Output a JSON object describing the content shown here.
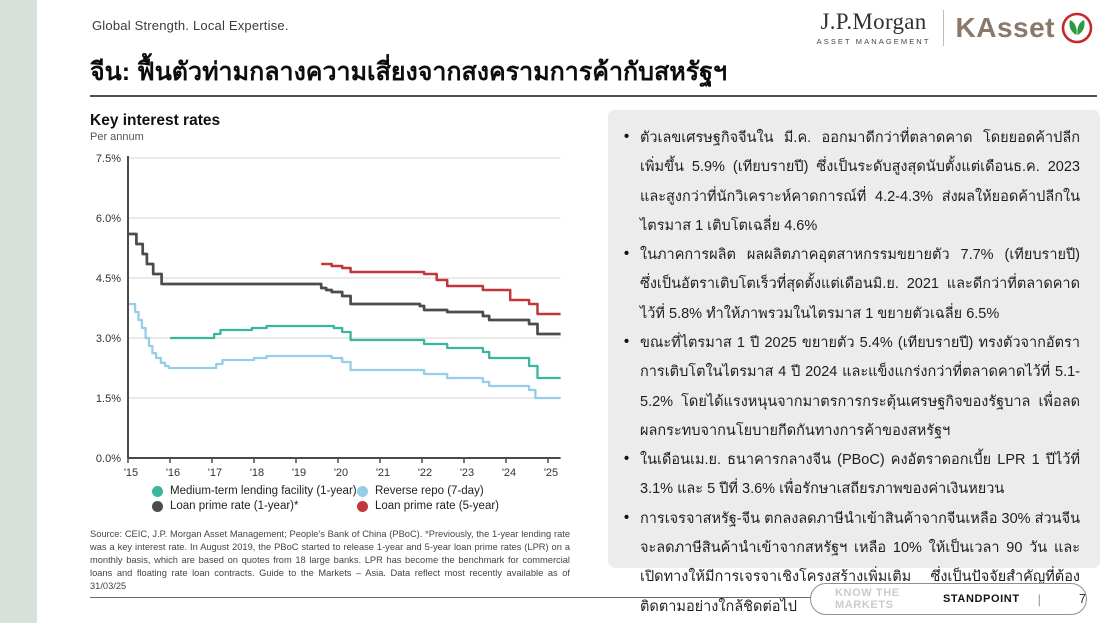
{
  "page": {
    "tagline": "Global Strength. Local Expertise.",
    "title": "จีน: ฟื้นตัวท่ามกลางความเสี่ยงจากสงครามการค้ากับสหรัฐฯ"
  },
  "logos": {
    "jpmorgan": {
      "name": "J.P.Morgan",
      "sub": "ASSET MANAGEMENT"
    },
    "kasset": {
      "name": "KAsset",
      "ring_color": "#c5282d",
      "leaf_color": "#2e9b44",
      "text_color": "#8a796b"
    }
  },
  "chart_data": {
    "type": "line",
    "title": "Key interest rates",
    "subtitle": "Per annum",
    "xlabel": "",
    "ylabel": "Per annum",
    "ylim": [
      0,
      7.5
    ],
    "xlim": [
      2015,
      2025.3
    ],
    "grid": true,
    "legend_position": "bottom",
    "yticks": [
      {
        "value": 7.5,
        "label": "7.5%"
      },
      {
        "value": 6.0,
        "label": "6.0%"
      },
      {
        "value": 4.5,
        "label": "4.5%"
      },
      {
        "value": 3.0,
        "label": "3.0%"
      },
      {
        "value": 1.5,
        "label": "1.5%"
      },
      {
        "value": 0.0,
        "label": "0.0%"
      }
    ],
    "xticks": [
      {
        "value": 2015,
        "label": "'15"
      },
      {
        "value": 2016,
        "label": "'16"
      },
      {
        "value": 2017,
        "label": "'17"
      },
      {
        "value": 2018,
        "label": "'18"
      },
      {
        "value": 2019,
        "label": "'19"
      },
      {
        "value": 2020,
        "label": "'20"
      },
      {
        "value": 2021,
        "label": "'21"
      },
      {
        "value": 2022,
        "label": "'22"
      },
      {
        "value": 2023,
        "label": "'23"
      },
      {
        "value": 2024,
        "label": "'24"
      },
      {
        "value": 2025,
        "label": "'25"
      }
    ],
    "series": [
      {
        "name": "Medium-term lending facility (1-year)",
        "color": "#3ab5a0",
        "width": 2.3,
        "points": [
          [
            2016.0,
            3.0
          ],
          [
            2017.05,
            3.1
          ],
          [
            2017.2,
            3.2
          ],
          [
            2017.95,
            3.25
          ],
          [
            2018.3,
            3.3
          ],
          [
            2019.9,
            3.25
          ],
          [
            2020.1,
            3.15
          ],
          [
            2020.3,
            2.95
          ],
          [
            2022.05,
            2.85
          ],
          [
            2022.6,
            2.75
          ],
          [
            2023.45,
            2.65
          ],
          [
            2023.6,
            2.5
          ],
          [
            2024.55,
            2.3
          ],
          [
            2024.75,
            2.0
          ],
          [
            2025.3,
            2.0
          ]
        ]
      },
      {
        "name": "Reverse repo (7-day)",
        "color": "#96cde9",
        "width": 2.3,
        "points": [
          [
            2015.0,
            3.85
          ],
          [
            2015.1,
            3.85
          ],
          [
            2015.17,
            3.65
          ],
          [
            2015.25,
            3.45
          ],
          [
            2015.33,
            3.25
          ],
          [
            2015.42,
            3.0
          ],
          [
            2015.5,
            2.8
          ],
          [
            2015.58,
            2.62
          ],
          [
            2015.67,
            2.5
          ],
          [
            2015.78,
            2.38
          ],
          [
            2015.88,
            2.3
          ],
          [
            2015.97,
            2.25
          ],
          [
            2017.1,
            2.35
          ],
          [
            2017.25,
            2.45
          ],
          [
            2018.0,
            2.5
          ],
          [
            2018.3,
            2.55
          ],
          [
            2019.85,
            2.5
          ],
          [
            2020.1,
            2.4
          ],
          [
            2020.3,
            2.2
          ],
          [
            2022.05,
            2.1
          ],
          [
            2022.6,
            2.0
          ],
          [
            2023.45,
            1.9
          ],
          [
            2023.6,
            1.8
          ],
          [
            2024.55,
            1.7
          ],
          [
            2024.7,
            1.5
          ],
          [
            2025.3,
            1.5
          ]
        ]
      },
      {
        "name": "Loan prime rate (1-year)*",
        "color": "#4c4c4c",
        "width": 2.7,
        "points": [
          [
            2015.0,
            5.6
          ],
          [
            2015.2,
            5.35
          ],
          [
            2015.35,
            5.1
          ],
          [
            2015.45,
            4.85
          ],
          [
            2015.6,
            4.6
          ],
          [
            2015.8,
            4.35
          ],
          [
            2019.6,
            4.25
          ],
          [
            2019.72,
            4.2
          ],
          [
            2019.85,
            4.15
          ],
          [
            2020.1,
            4.05
          ],
          [
            2020.3,
            3.85
          ],
          [
            2021.95,
            3.8
          ],
          [
            2022.05,
            3.7
          ],
          [
            2022.6,
            3.65
          ],
          [
            2023.45,
            3.55
          ],
          [
            2023.6,
            3.45
          ],
          [
            2024.55,
            3.35
          ],
          [
            2024.75,
            3.1
          ],
          [
            2025.3,
            3.1
          ]
        ]
      },
      {
        "name": "Loan prime rate (5-year)",
        "color": "#c2373b",
        "width": 2.5,
        "points": [
          [
            2019.6,
            4.85
          ],
          [
            2019.85,
            4.8
          ],
          [
            2020.1,
            4.75
          ],
          [
            2020.3,
            4.65
          ],
          [
            2022.05,
            4.6
          ],
          [
            2022.35,
            4.45
          ],
          [
            2022.6,
            4.3
          ],
          [
            2023.45,
            4.2
          ],
          [
            2024.1,
            3.95
          ],
          [
            2024.55,
            3.85
          ],
          [
            2024.75,
            3.6
          ],
          [
            2025.3,
            3.6
          ]
        ]
      }
    ]
  },
  "source": "Source: CEIC, J.P. Morgan Asset Management; People's Bank of China (PBoC). *Previously, the 1-year lending rate was a key interest rate. In August 2019, the PBoC started to release 1-year and 5-year loan prime rates (LPR) on a monthly basis, which are based on quotes from 18 large banks. LPR has become the benchmark for commercial loans and floating rate loan contracts. Guide to the Markets – Asia. Data reflect most recently available as of 31/03/25",
  "panel": {
    "bullets": [
      "ตัวเลขเศรษฐกิจจีนใน มี.ค. ออกมาดีกว่าที่ตลาดคาด โดยยอดค้าปลีกเพิ่มขึ้น 5.9% (เทียบรายปี) ซึ่งเป็นระดับสูงสุดนับตั้งแต่เดือนธ.ค. 2023 และสูงกว่าที่นักวิเคราะห์คาดการณ์ที่ 4.2-4.3% ส่งผลให้ยอดค้าปลีกในไตรมาส 1 เติบโตเฉลี่ย 4.6%",
      "ในภาคการผลิต ผลผลิตภาคอุตสาหกรรมขยายตัว 7.7% (เทียบรายปี) ซึ่งเป็นอัตราเติบโตเร็วที่สุดตั้งแต่เดือนมิ.ย. 2021 และดีกว่าที่ตลาดคาดไว้ที่ 5.8% ทำให้ภาพรวมในไตรมาส 1 ขยายตัวเฉลี่ย 6.5%",
      "ขณะที่ไตรมาส 1 ปี 2025 ขยายตัว 5.4% (เทียบรายปี) ทรงตัวจากอัตราการเติบโตในไตรมาส 4 ปี 2024 และแข็งแกร่งกว่าที่ตลาดคาดไว้ที่ 5.1-5.2% โดยได้แรงหนุนจากมาตรการกระตุ้นเศรษฐกิจของรัฐบาล เพื่อลดผลกระทบจากนโยบายกีดกันทางการค้าของสหรัฐฯ",
      "ในเดือนเม.ย. ธนาคารกลางจีน (PBoC) คงอัตราดอกเบี้ย LPR 1 ปีไว้ที่ 3.1% และ 5 ปีที่ 3.6% เพื่อรักษาเสถียรภาพของค่าเงินหยวน",
      "การเจรจาสหรัฐ-จีน ตกลงลดภาษีนำเข้าสินค้าจากจีนเหลือ 30% ส่วนจีนจะลดภาษีสินค้านำเข้าจากสหรัฐฯ เหลือ 10% ให้เป็นเวลา 90 วัน และเปิดทางให้มีการเจรจาเชิงโครงสร้างเพิ่มเติม ซึ่งเป็นปัจจัยสำคัญที่ต้องติดตามอย่างใกล้ชิดต่อไป"
    ]
  },
  "footer": {
    "left_label": "KNOW THE MARKETS",
    "right_label": "STANDPOINT",
    "separator": "|",
    "page_number": "7"
  }
}
